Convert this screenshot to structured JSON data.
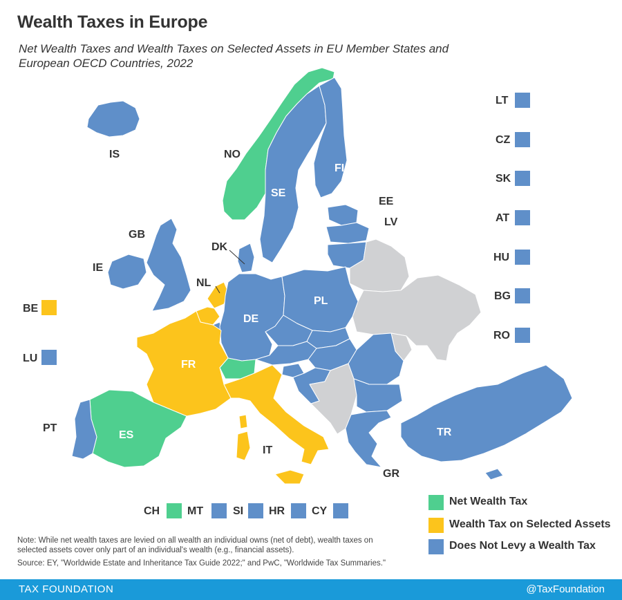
{
  "title": "Wealth Taxes in Europe",
  "subtitle": "Net Wealth Taxes and Wealth Taxes on Selected Assets in EU Member States and European OECD Countries, 2022",
  "colors": {
    "net_wealth_tax": "#4fcf8f",
    "selected_assets": "#fcc41c",
    "no_wealth_tax": "#5f8fc9",
    "not_covered": "#d0d1d3",
    "footer_bg": "#1a9ad9"
  },
  "map_labels": {
    "IS": "IS",
    "NO": "NO",
    "SE": "SE",
    "FI": "FI",
    "EE": "EE",
    "LV": "LV",
    "GB": "GB",
    "IE": "IE",
    "DK": "DK",
    "NL": "NL",
    "DE": "DE",
    "PL": "PL",
    "FR": "FR",
    "ES": "ES",
    "PT": "PT",
    "IT": "IT",
    "TR": "TR",
    "GR": "GR"
  },
  "small_countries": [
    {
      "code": "BE",
      "category": "selected_assets"
    },
    {
      "code": "LU",
      "category": "no_wealth_tax"
    }
  ],
  "right_column": [
    {
      "code": "LT",
      "category": "no_wealth_tax"
    },
    {
      "code": "CZ",
      "category": "no_wealth_tax"
    },
    {
      "code": "SK",
      "category": "no_wealth_tax"
    },
    {
      "code": "AT",
      "category": "no_wealth_tax"
    },
    {
      "code": "HU",
      "category": "no_wealth_tax"
    },
    {
      "code": "BG",
      "category": "no_wealth_tax"
    },
    {
      "code": "RO",
      "category": "no_wealth_tax"
    }
  ],
  "bottom_row": [
    {
      "code": "CH",
      "category": "net_wealth_tax"
    },
    {
      "code": "MT",
      "category": "no_wealth_tax"
    },
    {
      "code": "SI",
      "category": "no_wealth_tax"
    },
    {
      "code": "HR",
      "category": "no_wealth_tax"
    },
    {
      "code": "CY",
      "category": "no_wealth_tax"
    }
  ],
  "legend": {
    "net": "Net Wealth Tax",
    "selected": "Wealth Tax on Selected Assets",
    "none": "Does Not Levy a Wealth Tax"
  },
  "note": "Note: While net wealth taxes are levied on all wealth an individual owns (net of debt), wealth taxes on selected assets cover only part of an individual's wealth (e.g., financial assets).",
  "source": "Source: EY, \"Worldwide Estate and Inheritance Tax Guide 2022;\" and PwC, \"Worldwide Tax Summaries.\"",
  "footer": {
    "left": "TAX FOUNDATION",
    "right": "@TaxFoundation"
  }
}
